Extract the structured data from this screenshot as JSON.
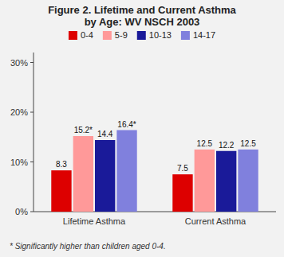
{
  "chart_data": {
    "type": "bar",
    "title": "Figure 2.  Lifetime and Current Asthma\nby Age: WV NSCH 2003",
    "categories": [
      "Lifetime Asthma",
      "Current Asthma"
    ],
    "series": [
      {
        "name": "0-4",
        "color": "#dd0000",
        "values": [
          8.3,
          7.5
        ],
        "value_labels": [
          "8.3",
          "7.5"
        ]
      },
      {
        "name": "5-9",
        "color": "#ff9999",
        "values": [
          15.2,
          12.5
        ],
        "value_labels": [
          "15.2*",
          "12.5"
        ]
      },
      {
        "name": "10-13",
        "color": "#1a1a99",
        "values": [
          14.4,
          12.2
        ],
        "value_labels": [
          "14.4",
          "12.2"
        ]
      },
      {
        "name": "14-17",
        "color": "#8080dd",
        "values": [
          16.4,
          12.5
        ],
        "value_labels": [
          "16.4*",
          "12.5"
        ]
      }
    ],
    "ylim": [
      0,
      32
    ],
    "yticks": [
      {
        "value": 0,
        "label": "0%"
      },
      {
        "value": 10,
        "label": "10%"
      },
      {
        "value": 20,
        "label": "20%"
      },
      {
        "value": 30,
        "label": "30%"
      }
    ],
    "grid": false,
    "legend": "top",
    "data_labels": true,
    "annotations": [
      "* Significantly higher than children aged 0-4."
    ]
  }
}
